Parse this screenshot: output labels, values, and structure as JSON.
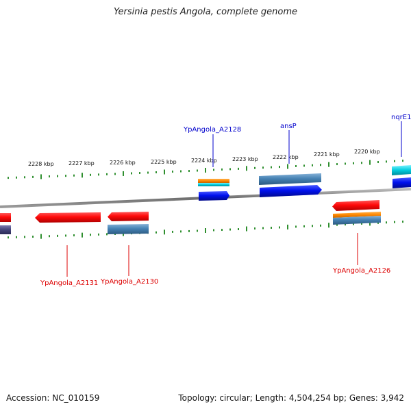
{
  "title": "Yersinia pestis Angola, complete genome",
  "footer": {
    "accession": "Accession: NC_010159",
    "summary": "Topology: circular; Length: 4,504,254 bp; Genes: 3,942"
  },
  "colors": {
    "backbone": "#8a8a8a",
    "tick": "#2f8f2f",
    "forward_label": "#0000cc",
    "reverse_label": "#dd0000",
    "red": "#ff1111",
    "blue": "#0011ee",
    "steel": "#4682b4",
    "orange": "#ff8800",
    "cyan": "#00ccdd",
    "navy": "#44447a"
  },
  "scale": {
    "labels": [
      "2228 kbp",
      "2227 kbp",
      "2226 kbp",
      "2225 kbp",
      "2224 kbp",
      "2223 kbp",
      "2222 kbp",
      "2221 kbp",
      "2220 kbp"
    ]
  },
  "features": {
    "forward_labels": [
      "YpAngola_A2128",
      "ansP",
      "nqrE1"
    ],
    "reverse_labels": [
      "YpAngola_A2131",
      "YpAngola_A2130",
      "YpAngola_A2126"
    ]
  }
}
